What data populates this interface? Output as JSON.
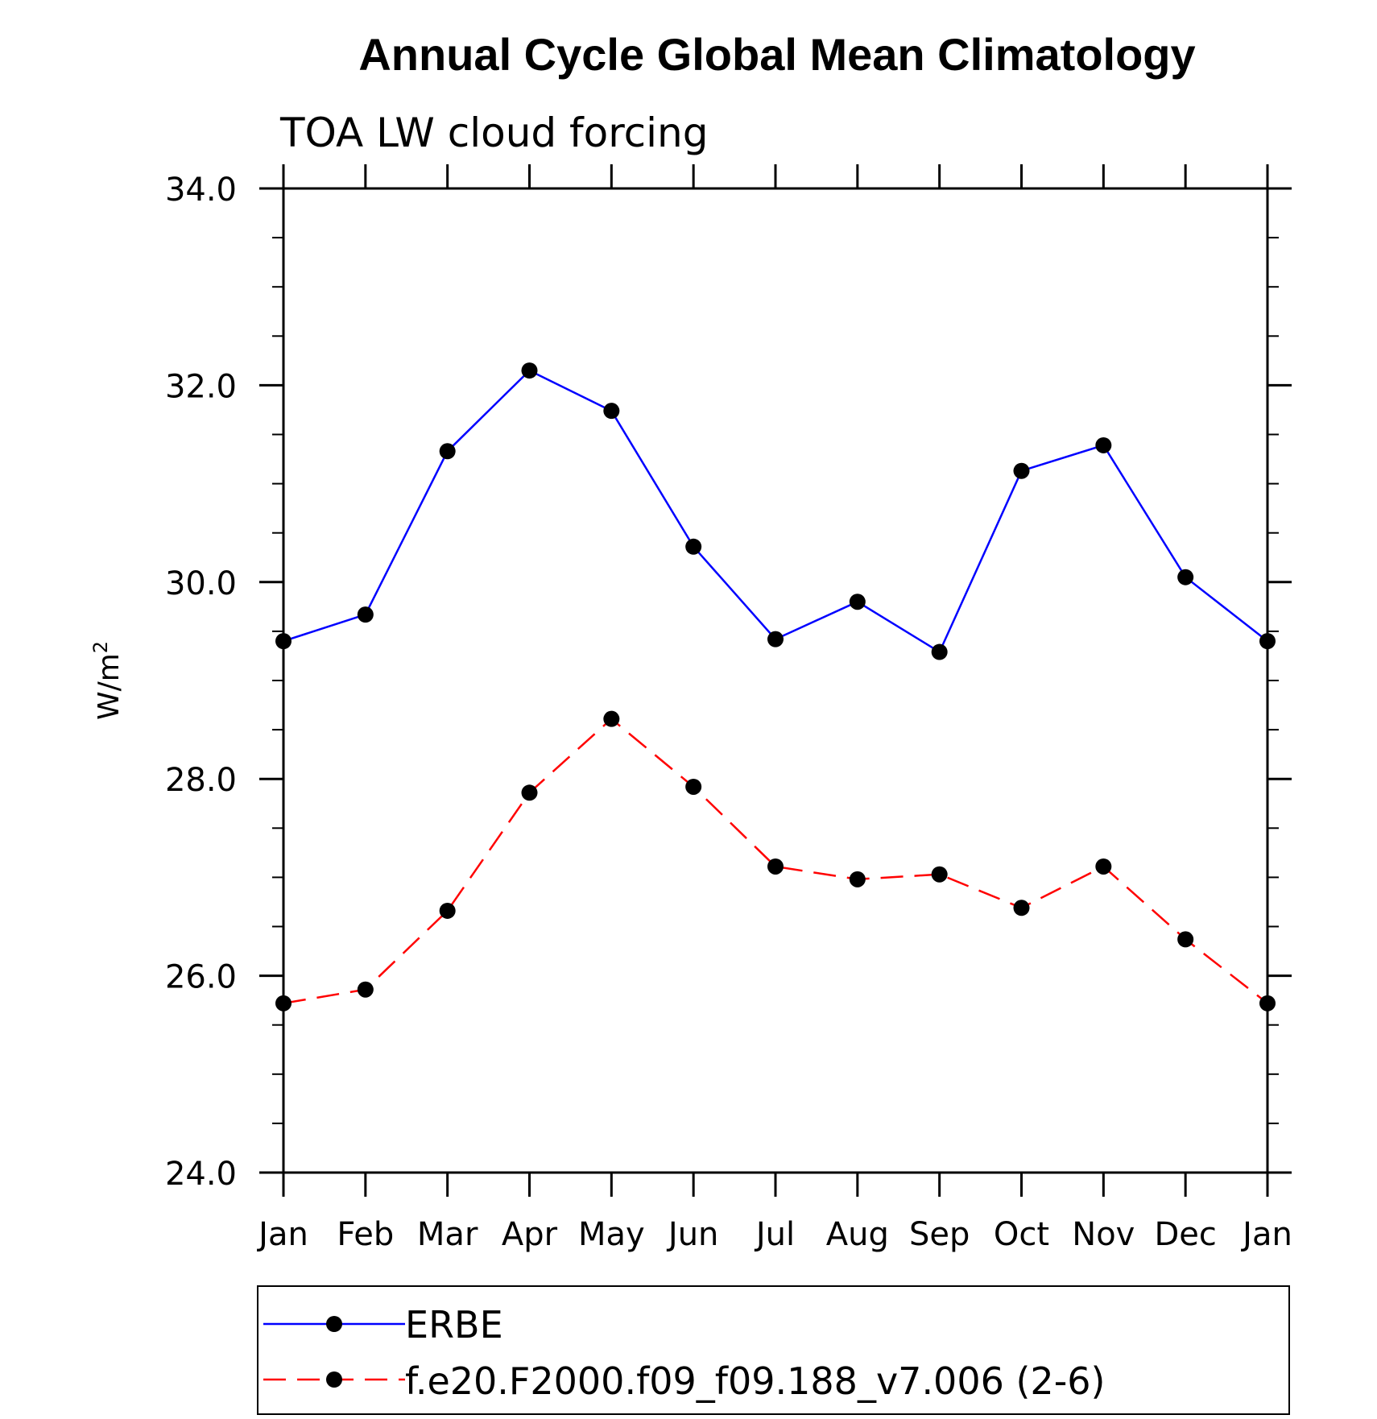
{
  "chart_data": {
    "type": "line",
    "title": "Annual Cycle Global Mean Climatology",
    "subtitle": "TOA LW cloud forcing",
    "ylabel": "W/m",
    "ylabel_superscript": "2",
    "ylim": [
      24.0,
      34.0
    ],
    "y_ticks": [
      "24.0",
      "26.0",
      "28.0",
      "30.0",
      "32.0",
      "34.0"
    ],
    "categories": [
      "Jan",
      "Feb",
      "Mar",
      "Apr",
      "May",
      "Jun",
      "Jul",
      "Aug",
      "Sep",
      "Oct",
      "Nov",
      "Dec",
      "Jan"
    ],
    "series": [
      {
        "name": "ERBE",
        "color": "#0000ff",
        "dash": "solid",
        "values": [
          29.4,
          29.67,
          31.33,
          32.15,
          31.74,
          30.36,
          29.42,
          29.8,
          29.29,
          31.13,
          31.39,
          30.05,
          29.4
        ]
      },
      {
        "name": "f.e20.F2000.f09_f09.188_v7.006 (2-6)",
        "color": "#ff0000",
        "dash": "dashed",
        "values": [
          25.72,
          25.86,
          26.66,
          27.86,
          28.61,
          27.92,
          27.11,
          26.98,
          27.03,
          26.69,
          27.11,
          26.37,
          25.72
        ]
      }
    ],
    "grid": false,
    "legend_position": "bottom"
  }
}
